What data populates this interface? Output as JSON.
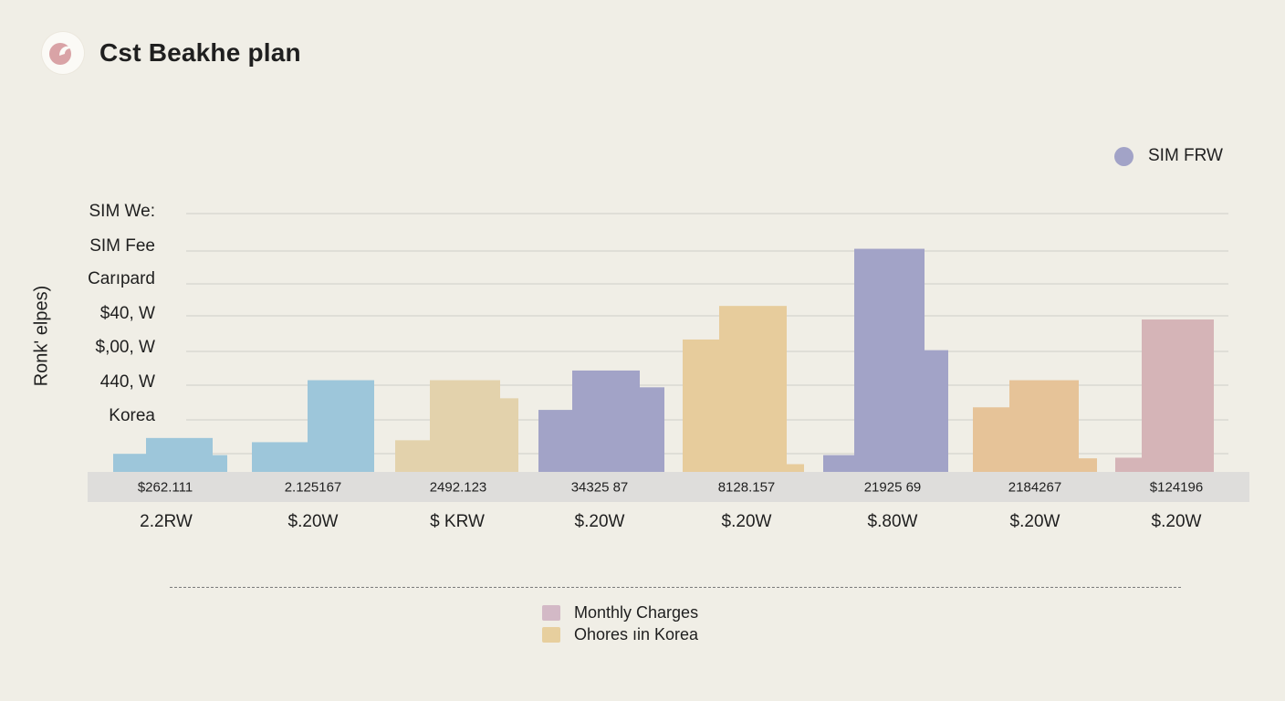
{
  "header": {
    "title": "Cst Beakhe plan"
  },
  "colors": {
    "blue": "#9dc6da",
    "tan": "#e3d2ac",
    "purple": "#a2a3c7",
    "wheat": "#e7cc9c",
    "peach": "#e6c398",
    "pink": "#d5b4b7",
    "grid": "#d9d8d2",
    "band": "#dedddb"
  },
  "legend_top": {
    "label": "SIM FRW",
    "color": "#a2a3c7"
  },
  "legend_bottom": [
    {
      "label": "Monthly Charges",
      "color": "#d3b9c6"
    },
    {
      "label": "Ohores ıin Korea",
      "color": "#e7cf9e"
    }
  ],
  "chart_data": {
    "type": "bar",
    "title": "Cst Beakhe plan",
    "ylabel": "Ronk' elpes)",
    "yticks": [
      "SIM We:",
      "SIM Fee",
      "Carıpard",
      "$40, W",
      "$,00, W",
      "440, W",
      "Korea"
    ],
    "ylim": [
      0,
      8
    ],
    "grid": true,
    "legend_position": "top-right",
    "categories": [
      "$262.111",
      "2.125167",
      "2492.123",
      "34325 87",
      "8128.157",
      "21925 69",
      "2184267",
      "$124196"
    ],
    "price_labels": [
      "2.2RW",
      "$.20W",
      "$ KRW",
      "$.20W",
      "$.20W",
      "$.80W",
      "$.20W",
      "$.20W"
    ],
    "groups": [
      {
        "color": "blue",
        "bars": [
          0.56,
          1.05,
          0.52
        ]
      },
      {
        "color": "blue",
        "bars": [
          0.92,
          2.84
        ]
      },
      {
        "color": "tan",
        "bars": [
          0.98,
          2.84,
          2.28
        ]
      },
      {
        "color": "purple",
        "bars": [
          1.92,
          3.14,
          2.62
        ]
      },
      {
        "color": "wheat",
        "bars": [
          4.1,
          5.14,
          0.24
        ]
      },
      {
        "color": "purple",
        "bars": [
          0.52,
          6.91,
          3.77
        ]
      },
      {
        "color": "peach",
        "bars": [
          2.0,
          2.84,
          0.42
        ]
      },
      {
        "color": "pink",
        "bars": [
          0.44,
          4.72
        ]
      }
    ]
  }
}
